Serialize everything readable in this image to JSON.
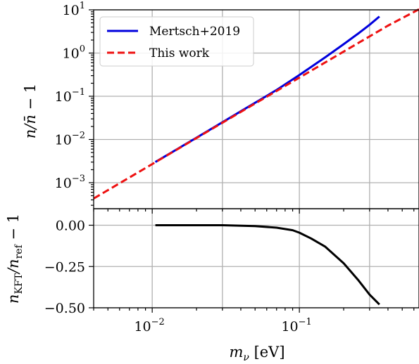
{
  "chart_data": [
    {
      "type": "line",
      "panel": "top",
      "xscale": "log",
      "yscale": "log",
      "xlim": [
        0.004,
        0.65
      ],
      "ylim": [
        0.00025,
        10
      ],
      "ylabel_parts": [
        "n/",
        "n̄",
        " − 1"
      ],
      "ylabel_text": "n/n̄ − 1",
      "y_tick_values": [
        0.001,
        0.01,
        0.1,
        1,
        10
      ],
      "y_tick_labels": [
        {
          "base": "10",
          "exp": "−3"
        },
        {
          "base": "10",
          "exp": "−2"
        },
        {
          "base": "10",
          "exp": "−1"
        },
        {
          "base": "10",
          "exp": "0"
        },
        {
          "base": "10",
          "exp": "1"
        }
      ],
      "grid": true,
      "legend_position": "top-left",
      "series": [
        {
          "name": "Mertsch+2019",
          "color": "#0000dd",
          "style": "solid",
          "x": [
            0.0105,
            0.02,
            0.04,
            0.07,
            0.1,
            0.15,
            0.2,
            0.25,
            0.3,
            0.35
          ],
          "y": [
            0.003,
            0.011,
            0.045,
            0.14,
            0.31,
            0.8,
            1.6,
            2.8,
            4.5,
            7.0
          ]
        },
        {
          "name": "This work",
          "color": "#ee1111",
          "style": "dashed",
          "x": [
            0.004,
            0.01,
            0.02,
            0.05,
            0.1,
            0.2,
            0.4,
            0.65
          ],
          "y": [
            0.00043,
            0.0027,
            0.0108,
            0.068,
            0.27,
            1.08,
            4.3,
            10.3
          ]
        }
      ]
    },
    {
      "type": "line",
      "panel": "bottom",
      "xscale": "log",
      "yscale": "linear",
      "xlim": [
        0.004,
        0.65
      ],
      "ylim": [
        -0.5,
        0.1
      ],
      "xlabel_text": "m_ν [eV]",
      "ylabel_text": "n_KFT/n_ref − 1",
      "y_tick_values": [
        0.0,
        -0.25,
        -0.5
      ],
      "y_tick_labels": [
        "0.00",
        "−0.25",
        "−0.50"
      ],
      "x_tick_values": [
        0.01,
        0.1
      ],
      "x_tick_labels": [
        {
          "base": "10",
          "exp": "−2"
        },
        {
          "base": "10",
          "exp": "−1"
        }
      ],
      "grid": true,
      "series": [
        {
          "color": "#000000",
          "style": "solid",
          "x": [
            0.0105,
            0.02,
            0.03,
            0.05,
            0.07,
            0.09,
            0.1,
            0.12,
            0.15,
            0.2,
            0.25,
            0.3,
            0.35
          ],
          "y": [
            0.0,
            0.0,
            0.0,
            -0.005,
            -0.015,
            -0.03,
            -0.045,
            -0.08,
            -0.13,
            -0.23,
            -0.33,
            -0.42,
            -0.48
          ]
        }
      ]
    }
  ]
}
